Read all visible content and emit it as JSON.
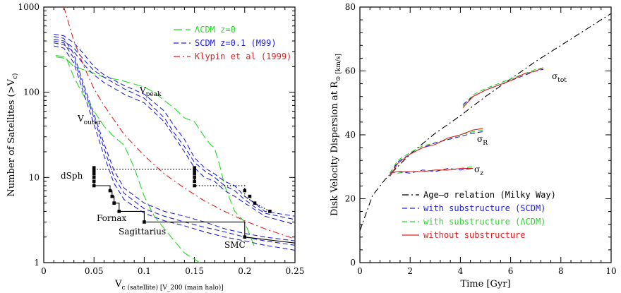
{
  "chart_data": [
    {
      "type": "line",
      "xlabel": "V_c (satellite) [V_200 (main halo)]",
      "ylabel": "Number of Satellites (>V_c)",
      "xlim": [
        0,
        0.25
      ],
      "ylim": [
        1,
        1000
      ],
      "yscale": "log",
      "x_ticks": [
        0,
        0.05,
        0.1,
        0.15,
        0.2,
        0.25
      ],
      "x_tick_labels": [
        "0",
        "0.05",
        "0.1",
        "0.15",
        "0.2",
        "0.25"
      ],
      "y_ticks": [
        1,
        10,
        100,
        1000
      ],
      "y_tick_labels": [
        "1",
        "10",
        "100",
        "1000"
      ],
      "legend": {
        "placement": "top-right",
        "entries": [
          {
            "label": "ΛCDM z=0",
            "color": "#22dd22",
            "style": "long-dash"
          },
          {
            "label": "SCDM z=0.1 (M99)",
            "color": "#2222dd",
            "style": "dash"
          },
          {
            "label": "Klypin et al (1999)",
            "color": "#dd2222",
            "style": "dash-dot"
          }
        ]
      },
      "annotations": [
        "V_peak",
        "V_outer",
        "dSph",
        "Fornax",
        "Sagittarius",
        "SMC"
      ],
      "series": [
        {
          "color": "#22dd22",
          "style": "long-dash",
          "group": "ΛCDM z=0 (V_peak)",
          "x": [
            0.012,
            0.022,
            0.03,
            0.045,
            0.06,
            0.075,
            0.09,
            0.1,
            0.11,
            0.12,
            0.13,
            0.14,
            0.15,
            0.16,
            0.165,
            0.17,
            0.175,
            0.18,
            0.19,
            0.2,
            0.21
          ],
          "y": [
            260,
            250,
            200,
            175,
            150,
            140,
            125,
            115,
            100,
            80,
            65,
            50,
            45,
            30,
            25,
            22,
            14,
            8,
            4,
            3,
            1.5
          ]
        },
        {
          "color": "#22dd22",
          "style": "long-dash",
          "group": "ΛCDM z=0 (V_outer)",
          "x": [
            0.012,
            0.022,
            0.03,
            0.04,
            0.05,
            0.06,
            0.07,
            0.08,
            0.09,
            0.1,
            0.11,
            0.12,
            0.13,
            0.14,
            0.15,
            0.155
          ],
          "y": [
            270,
            260,
            150,
            90,
            60,
            40,
            30,
            24,
            13,
            6,
            3.5,
            2.5,
            1.8,
            1.3,
            1.1,
            1
          ]
        },
        {
          "color": "#2222dd",
          "style": "dash",
          "group": "SCDM z=0.1 (V_peak)",
          "x": [
            0.01,
            0.02,
            0.03,
            0.04,
            0.05,
            0.06,
            0.08,
            0.1,
            0.12,
            0.13,
            0.14,
            0.15,
            0.16,
            0.17,
            0.18,
            0.19,
            0.2,
            0.21,
            0.22,
            0.25
          ],
          "y": [
            480,
            460,
            380,
            280,
            200,
            160,
            120,
            95,
            60,
            40,
            28,
            17,
            13,
            11,
            9,
            8,
            6,
            5,
            4,
            3.5
          ]
        },
        {
          "color": "#2222dd",
          "style": "dash",
          "group": "SCDM z=0.1 (V_peak)",
          "x": [
            0.01,
            0.02,
            0.03,
            0.04,
            0.05,
            0.06,
            0.08,
            0.1,
            0.12,
            0.13,
            0.14,
            0.15,
            0.16,
            0.17,
            0.18,
            0.19,
            0.2,
            0.21,
            0.22,
            0.25
          ],
          "y": [
            420,
            400,
            330,
            240,
            180,
            150,
            110,
            85,
            50,
            33,
            23,
            15,
            12,
            10,
            8,
            7,
            5.5,
            4.5,
            3.8,
            3.2
          ]
        },
        {
          "color": "#2222dd",
          "style": "dash",
          "group": "SCDM z=0.1 (V_peak)",
          "x": [
            0.01,
            0.02,
            0.03,
            0.04,
            0.05,
            0.06,
            0.08,
            0.1,
            0.12,
            0.13,
            0.14,
            0.15,
            0.16,
            0.17,
            0.18,
            0.19,
            0.2,
            0.21,
            0.22,
            0.25
          ],
          "y": [
            380,
            360,
            300,
            210,
            160,
            130,
            95,
            75,
            45,
            30,
            20,
            13,
            10,
            9,
            7,
            6,
            5,
            4.2,
            3.5,
            2.8
          ]
        },
        {
          "color": "#2222dd",
          "style": "dash",
          "group": "SCDM z=0.1 (V_outer)",
          "x": [
            0.01,
            0.02,
            0.03,
            0.04,
            0.05,
            0.06,
            0.07,
            0.08,
            0.1,
            0.12,
            0.14,
            0.16,
            0.18,
            0.2,
            0.22,
            0.25
          ],
          "y": [
            450,
            430,
            280,
            120,
            55,
            25,
            12,
            7.5,
            5,
            4,
            3.5,
            3,
            2.5,
            2.2,
            2,
            1.8
          ]
        },
        {
          "color": "#2222dd",
          "style": "dash",
          "group": "SCDM z=0.1 (V_outer)",
          "x": [
            0.01,
            0.02,
            0.03,
            0.04,
            0.05,
            0.06,
            0.07,
            0.08,
            0.1,
            0.12,
            0.14,
            0.16,
            0.18,
            0.2,
            0.22,
            0.25
          ],
          "y": [
            400,
            380,
            250,
            110,
            50,
            22,
            10,
            6.5,
            4.3,
            3.5,
            3,
            2.6,
            2.3,
            2,
            1.8,
            1.6
          ]
        },
        {
          "color": "#2222dd",
          "style": "dash",
          "group": "SCDM z=0.1 (V_outer)",
          "x": [
            0.01,
            0.02,
            0.03,
            0.04,
            0.05,
            0.06,
            0.07,
            0.08,
            0.1,
            0.12,
            0.14,
            0.16,
            0.18,
            0.2,
            0.22,
            0.25
          ],
          "y": [
            350,
            330,
            220,
            95,
            42,
            18,
            8.5,
            5.5,
            3.8,
            3.1,
            2.7,
            2.3,
            2,
            1.8,
            1.6,
            1.4
          ]
        },
        {
          "color": "#dd2222",
          "style": "dash-dot",
          "group": "Klypin et al (1999)",
          "x": [
            0.02,
            0.03,
            0.04,
            0.05,
            0.06,
            0.08,
            0.1,
            0.12,
            0.14,
            0.16,
            0.18,
            0.2,
            0.22,
            0.25
          ],
          "y": [
            1000,
            400,
            200,
            110,
            70,
            32,
            18,
            11,
            7.5,
            5.3,
            4,
            3.1,
            2.5,
            1.9
          ]
        },
        {
          "color": "#000000",
          "style": "solid",
          "group": "observed satellites",
          "x": [
            0.05,
            0.05,
            0.066,
            0.066,
            0.068,
            0.068,
            0.07,
            0.07,
            0.075,
            0.075,
            0.1,
            0.1,
            0.2,
            0.2,
            0.25
          ],
          "y": [
            9,
            8,
            8,
            7,
            7,
            6,
            6,
            5,
            5,
            4,
            4,
            3,
            3,
            2,
            1.7
          ]
        },
        {
          "color": "#000000",
          "style": "dotted",
          "group": "observed satellites",
          "x": [
            0.05,
            0.15,
            0.15,
            0.2,
            0.2,
            0.2,
            0.21,
            0.225
          ],
          "y": [
            12.5,
            12.5,
            8,
            8,
            7,
            6,
            5,
            4
          ]
        }
      ],
      "markers": {
        "color": "#000000",
        "x": [
          0.05,
          0.05,
          0.05,
          0.05,
          0.05,
          0.05,
          0.066,
          0.068,
          0.07,
          0.075,
          0.1,
          0.15,
          0.15,
          0.15,
          0.15,
          0.15,
          0.15,
          0.2,
          0.205,
          0.21,
          0.225,
          0.2
        ],
        "y": [
          13,
          12,
          11,
          10,
          9,
          8,
          7,
          6,
          5,
          4,
          3,
          13,
          12,
          11,
          10,
          9,
          8,
          7,
          6,
          5,
          4,
          2
        ]
      }
    },
    {
      "type": "line",
      "xlabel": "Time [Gyr]",
      "ylabel": "Disk Velocity Dispersion at R_⊙ [km/s]",
      "xlim": [
        0,
        10
      ],
      "ylim": [
        0,
        80
      ],
      "x_ticks": [
        0,
        2,
        4,
        6,
        8,
        10
      ],
      "x_tick_labels": [
        "0",
        "2",
        "4",
        "6",
        "8",
        "10"
      ],
      "y_ticks": [
        0,
        20,
        40,
        60,
        80
      ],
      "y_tick_labels": [
        "0",
        "20",
        "40",
        "60",
        "80"
      ],
      "legend": {
        "placement": "bottom-right",
        "entries": [
          {
            "label": "Age–σ relation (Milky Way)",
            "color": "#000000",
            "style": "dash-dot"
          },
          {
            "label": "with substructure (SCDM)",
            "color": "#2222dd",
            "style": "dash"
          },
          {
            "label": "with substructure (ΛCDM)",
            "color": "#22dd22",
            "style": "dash"
          },
          {
            "label": "without substructure",
            "color": "#dd2222",
            "style": "solid"
          }
        ]
      },
      "annotations": [
        "σ_tot",
        "σ_R",
        "σ_z"
      ],
      "series": [
        {
          "color": "#000000",
          "style": "dash-dot",
          "group": "Age–σ relation (Milky Way)",
          "x": [
            0,
            0.5,
            1,
            2,
            3,
            4,
            5,
            6,
            7,
            8,
            9,
            10
          ],
          "y": [
            10,
            21,
            26,
            34,
            40.5,
            46,
            52,
            57.5,
            63,
            68,
            73,
            78
          ]
        },
        {
          "color": "#22dd22",
          "style": "dash",
          "group": "σ_tot",
          "x": [
            4.1,
            4.5,
            5,
            5.5,
            6,
            6.5,
            7,
            7.3
          ],
          "y": [
            49,
            52.5,
            54.5,
            56,
            57.5,
            59,
            60.5,
            61
          ]
        },
        {
          "color": "#2222dd",
          "style": "dash",
          "group": "σ_tot",
          "x": [
            4.1,
            4.5,
            5,
            5.5,
            6,
            6.5,
            7,
            7.3
          ],
          "y": [
            49.5,
            52,
            54,
            55.5,
            57,
            58.5,
            60,
            60.5
          ]
        },
        {
          "color": "#dd2222",
          "style": "solid",
          "group": "σ_tot",
          "x": [
            4.1,
            4.5,
            5,
            5.5,
            6,
            6.5,
            7,
            7.3
          ],
          "y": [
            48.5,
            52,
            54,
            55.5,
            57,
            59,
            60,
            61
          ]
        },
        {
          "color": "#22dd22",
          "style": "dash",
          "group": "σ_R",
          "x": [
            1.2,
            1.5,
            2,
            2.5,
            3,
            3.5,
            4,
            4.5,
            4.9
          ],
          "y": [
            28,
            32,
            34.5,
            36.5,
            37.5,
            38.5,
            40,
            41,
            41.5
          ]
        },
        {
          "color": "#2222dd",
          "style": "dash",
          "group": "σ_R",
          "x": [
            1.2,
            1.5,
            2,
            2.5,
            3,
            3.5,
            4,
            4.5,
            4.9
          ],
          "y": [
            27.5,
            31.5,
            34,
            36,
            37.5,
            38.5,
            39.5,
            40.5,
            41
          ]
        },
        {
          "color": "#dd2222",
          "style": "solid",
          "group": "σ_R",
          "x": [
            1.2,
            1.5,
            2,
            2.5,
            3,
            3.5,
            4,
            4.5,
            4.9
          ],
          "y": [
            27,
            31,
            34,
            36,
            37,
            39,
            40,
            41.5,
            42
          ]
        },
        {
          "color": "#22dd22",
          "style": "dash",
          "group": "σ_z",
          "x": [
            1.2,
            1.5,
            2,
            2.5,
            3,
            3.5,
            4,
            4.5
          ],
          "y": [
            28.5,
            28,
            28.5,
            28.5,
            29,
            29,
            29.5,
            30
          ]
        },
        {
          "color": "#2222dd",
          "style": "dash",
          "group": "σ_z",
          "x": [
            1.2,
            1.5,
            2,
            2.5,
            3,
            3.5,
            4,
            4.5
          ],
          "y": [
            28,
            28.5,
            28,
            29,
            28.5,
            29.5,
            29,
            29.5
          ]
        },
        {
          "color": "#dd2222",
          "style": "solid",
          "group": "σ_z",
          "x": [
            1.2,
            1.5,
            2,
            2.5,
            3,
            3.5,
            4,
            4.5
          ],
          "y": [
            28,
            28.5,
            28.5,
            28.5,
            29,
            29,
            29.5,
            29.5
          ]
        }
      ]
    }
  ]
}
